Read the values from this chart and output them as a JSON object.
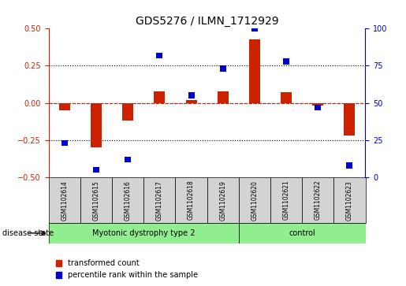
{
  "title": "GDS5276 / ILMN_1712929",
  "samples": [
    "GSM1102614",
    "GSM1102615",
    "GSM1102616",
    "GSM1102617",
    "GSM1102618",
    "GSM1102619",
    "GSM1102620",
    "GSM1102621",
    "GSM1102622",
    "GSM1102623"
  ],
  "red_values": [
    -0.05,
    -0.3,
    -0.12,
    0.08,
    0.02,
    0.08,
    0.43,
    0.07,
    -0.02,
    -0.22
  ],
  "blue_values_pct": [
    23,
    5,
    12,
    82,
    55,
    73,
    100,
    78,
    47,
    8
  ],
  "groups": [
    {
      "label": "Myotonic dystrophy type 2",
      "start": 0,
      "end": 6,
      "color": "#90ee90"
    },
    {
      "label": "control",
      "start": 6,
      "end": 10,
      "color": "#90ee90"
    }
  ],
  "ylim_left": [
    -0.5,
    0.5
  ],
  "ylim_right": [
    0,
    100
  ],
  "yticks_left": [
    -0.5,
    -0.25,
    0,
    0.25,
    0.5
  ],
  "yticks_right": [
    0,
    25,
    50,
    75,
    100
  ],
  "hlines": [
    0.25,
    0,
    -0.25
  ],
  "red_color": "#cc2200",
  "blue_color": "#0000cc",
  "grid_color": "#000000",
  "bar_width": 0.35,
  "blue_bar_width": 0.2,
  "disease_state_label": "disease state",
  "legend_red": "transformed count",
  "legend_blue": "percentile rank within the sample"
}
